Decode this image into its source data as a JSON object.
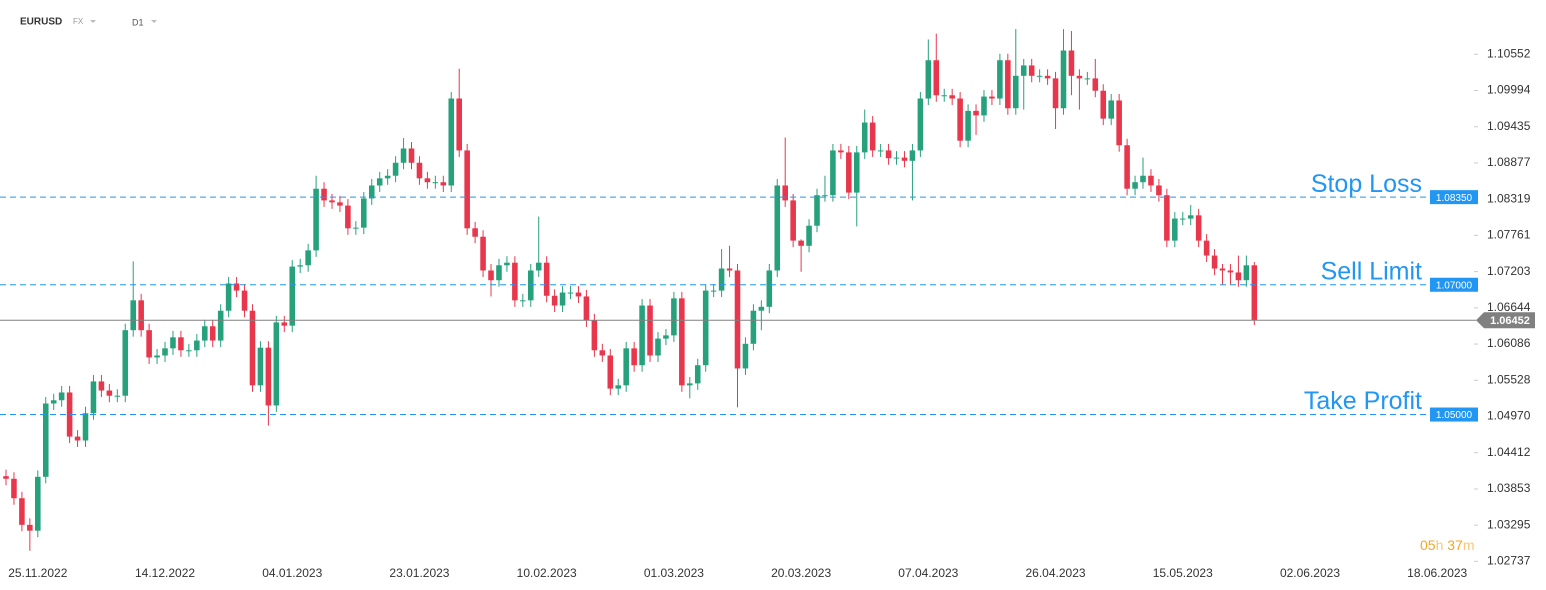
{
  "header": {
    "symbol": "EURUSD",
    "market": "FX",
    "interval": "D1"
  },
  "chart_data": {
    "type": "candlestick",
    "up_color": "#26a17b",
    "down_color": "#e8374c",
    "level_color": "#2196f3",
    "last_color": "#808080",
    "grid": false,
    "categories": [
      null,
      null,
      null,
      null,
      "25.11.2022",
      null,
      null,
      null,
      null,
      null,
      null,
      null,
      null,
      null,
      null,
      null,
      null,
      null,
      null,
      null,
      "14.12.2022",
      null,
      null,
      null,
      null,
      null,
      null,
      null,
      null,
      null,
      null,
      null,
      null,
      null,
      null,
      null,
      "04.01.2023",
      null,
      null,
      null,
      null,
      null,
      null,
      null,
      null,
      null,
      null,
      null,
      null,
      null,
      null,
      null,
      "23.01.2023",
      null,
      null,
      null,
      null,
      null,
      null,
      null,
      null,
      null,
      null,
      null,
      null,
      null,
      null,
      null,
      "10.02.2023",
      null,
      null,
      null,
      null,
      null,
      null,
      null,
      null,
      null,
      null,
      null,
      null,
      null,
      null,
      null,
      "01.03.2023",
      null,
      null,
      null,
      null,
      null,
      null,
      null,
      null,
      null,
      null,
      null,
      null,
      null,
      null,
      null,
      "20.03.2023",
      null,
      null,
      null,
      null,
      null,
      null,
      null,
      null,
      null,
      null,
      null,
      null,
      null,
      null,
      null,
      "07.04.2023",
      null,
      null,
      null,
      null,
      null,
      null,
      null,
      null,
      null,
      null,
      null,
      null,
      null,
      null,
      null,
      "26.04.2023",
      null,
      null,
      null,
      null,
      null,
      null,
      null,
      null,
      null,
      null,
      null,
      null,
      null,
      null,
      null,
      "15.05.2023",
      null,
      null,
      null,
      null,
      null,
      null,
      null,
      null,
      null,
      null,
      null,
      null,
      null,
      null,
      null,
      "02.06.2023",
      null,
      null,
      null,
      null,
      null,
      null,
      null,
      null,
      null,
      null,
      null,
      null,
      null,
      null,
      null,
      "18.06.2023",
      null,
      null,
      null,
      null
    ],
    "open": [
      1.0405,
      1.0401,
      1.0371,
      1.033,
      1.0321,
      1.0404,
      1.0517,
      1.0522,
      1.0534,
      1.0466,
      1.046,
      1.0502,
      1.0551,
      1.0537,
      1.0529,
      1.0529,
      1.063,
      1.0676,
      1.063,
      1.0588,
      1.0591,
      1.0602,
      1.0619,
      1.0599,
      1.0599,
      1.0614,
      1.0636,
      1.0614,
      1.066,
      1.0702,
      1.0691,
      1.066,
      1.0545,
      1.0603,
      1.0514,
      1.0642,
      1.0637,
      1.0728,
      1.073,
      1.0753,
      1.0848,
      1.083,
      1.0827,
      1.0822,
      1.0787,
      1.0788,
      1.0833,
      1.0853,
      1.0864,
      1.0868,
      1.0888,
      1.091,
      1.0888,
      1.0864,
      1.0858,
      1.0858,
      1.0853,
      1.0987,
      1.0907,
      1.0787,
      1.0774,
      1.0722,
      1.0707,
      1.073,
      1.0734,
      1.0676,
      1.0676,
      1.0722,
      1.0734,
      1.0683,
      1.0668,
      1.0688,
      1.0688,
      1.0682,
      1.0645,
      1.0599,
      1.0591,
      1.054,
      1.0545,
      1.0602,
      1.0576,
      1.0668,
      1.0591,
      1.0617,
      1.0622,
      1.0679,
      1.0545,
      1.0548,
      1.0576,
      1.0691,
      1.0691,
      1.0725,
      1.0722,
      1.0571,
      1.0609,
      1.066,
      1.0666,
      1.0722,
      1.0853,
      1.083,
      1.0768,
      1.076,
      1.0791,
      1.0838,
      1.0838,
      1.0907,
      1.0904,
      1.0842,
      1.0904,
      1.095,
      1.0907,
      1.0907,
      1.0895,
      1.0896,
      1.0891,
      1.0907,
      1.0987,
      1.1046,
      1.0992,
      1.0992,
      1.0987,
      1.0922,
      1.0968,
      1.0961,
      1.099,
      1.0987,
      1.1046,
      1.0972,
      1.1022,
      1.1038,
      1.1022,
      1.1022,
      1.1018,
      1.0972,
      1.1061,
      1.1022,
      1.1018,
      1.1018,
      1.0999,
      1.0956,
      1.0984,
      1.0915,
      1.0848,
      1.0858,
      1.0868,
      1.0853,
      1.0838,
      1.0768,
      1.0802,
      1.0802,
      1.0807,
      1.0768,
      1.0745,
      1.0725,
      1.0722,
      1.0719,
      1.0707,
      1.073,
      null,
      null,
      null,
      null,
      null,
      null,
      null,
      null,
      null,
      null,
      null,
      null,
      null,
      null,
      null,
      null,
      null,
      null,
      null,
      null,
      null,
      null,
      null,
      null,
      null,
      null,
      null
    ],
    "high": [
      1.0415,
      1.0411,
      1.0381,
      1.034,
      1.0414,
      1.0527,
      1.0532,
      1.0544,
      1.0544,
      1.0476,
      1.0512,
      1.0561,
      1.0561,
      1.0547,
      1.0539,
      1.064,
      1.0736,
      1.0686,
      1.064,
      1.0601,
      1.0612,
      1.0629,
      1.0629,
      1.0609,
      1.0624,
      1.0646,
      1.0646,
      1.067,
      1.0712,
      1.0712,
      1.0701,
      1.067,
      1.0613,
      1.0613,
      1.0652,
      1.0652,
      1.0738,
      1.074,
      1.0763,
      1.0868,
      1.0858,
      1.084,
      1.0837,
      1.0832,
      1.0798,
      1.0843,
      1.0863,
      1.0874,
      1.0878,
      1.0898,
      1.0926,
      1.092,
      1.0898,
      1.0874,
      1.0868,
      1.0868,
      1.0997,
      1.1033,
      1.0917,
      1.0797,
      1.0784,
      1.0732,
      1.074,
      1.0744,
      1.0744,
      1.0686,
      1.0732,
      1.0805,
      1.0744,
      1.0693,
      1.0698,
      1.0698,
      1.0698,
      1.0692,
      1.0655,
      1.0609,
      1.0601,
      1.0555,
      1.0612,
      1.0612,
      1.0678,
      1.0678,
      1.0627,
      1.0632,
      1.0689,
      1.0689,
      1.0558,
      1.0586,
      1.0701,
      1.0701,
      1.0755,
      1.076,
      1.0732,
      1.0619,
      1.067,
      1.0676,
      1.0732,
      1.0863,
      1.0927,
      1.084,
      1.077,
      1.0801,
      1.0848,
      1.0868,
      1.0917,
      1.0917,
      1.0914,
      1.0914,
      1.097,
      1.096,
      1.0917,
      1.0917,
      1.0906,
      1.0906,
      1.0917,
      1.0997,
      1.1078,
      1.1087,
      1.1002,
      1.1002,
      1.0997,
      1.0978,
      1.0978,
      1.1,
      1.1,
      1.1056,
      1.1056,
      1.1094,
      1.1048,
      1.1048,
      1.1032,
      1.1032,
      1.1028,
      1.1094,
      1.1091,
      1.1032,
      1.1028,
      1.1048,
      1.1009,
      1.0994,
      1.0994,
      1.0925,
      1.0868,
      1.0896,
      1.0878,
      1.0863,
      1.0848,
      1.0812,
      1.0812,
      1.0823,
      1.0817,
      1.0778,
      1.0755,
      1.0732,
      1.0732,
      1.0745,
      1.0745,
      1.0735,
      null,
      null,
      null,
      null,
      null,
      null,
      null,
      null,
      null,
      null,
      null,
      null,
      null,
      null,
      null,
      null,
      null,
      null,
      null,
      null,
      null,
      null,
      null,
      null,
      null,
      null,
      null
    ],
    "low": [
      1.0391,
      1.0361,
      1.032,
      1.029,
      1.0311,
      1.0394,
      1.0507,
      1.0512,
      1.0456,
      1.045,
      1.045,
      1.0492,
      1.0527,
      1.0519,
      1.0519,
      1.0519,
      1.062,
      1.062,
      1.0578,
      1.0578,
      1.0581,
      1.0592,
      1.0589,
      1.0589,
      1.0589,
      1.0604,
      1.0604,
      1.0604,
      1.065,
      1.0681,
      1.065,
      1.0535,
      1.0535,
      1.0483,
      1.0504,
      1.0627,
      1.0627,
      1.0718,
      1.072,
      1.0743,
      1.082,
      1.0817,
      1.0812,
      1.0777,
      1.0777,
      1.0778,
      1.0823,
      1.0843,
      1.0854,
      1.0858,
      1.0878,
      1.0878,
      1.0854,
      1.0848,
      1.0848,
      1.0843,
      1.0843,
      1.0897,
      1.0777,
      1.0764,
      1.0712,
      1.0682,
      1.0697,
      1.072,
      1.0666,
      1.0666,
      1.0666,
      1.0712,
      1.0673,
      1.0658,
      1.0658,
      1.0678,
      1.0672,
      1.0635,
      1.0589,
      1.0581,
      1.053,
      1.053,
      1.0535,
      1.0566,
      1.0566,
      1.0581,
      1.0581,
      1.0607,
      1.0612,
      1.0535,
      1.0525,
      1.0538,
      1.0566,
      1.0681,
      1.0681,
      1.0712,
      1.0511,
      1.0561,
      1.0599,
      1.063,
      1.0656,
      1.0712,
      1.082,
      1.0758,
      1.072,
      1.075,
      1.0781,
      1.0828,
      1.0828,
      1.0894,
      1.0832,
      1.079,
      1.0894,
      1.0897,
      1.0897,
      1.0885,
      1.0885,
      1.0881,
      1.083,
      1.0897,
      1.0977,
      1.0982,
      1.0982,
      1.0977,
      1.0912,
      1.0912,
      1.0931,
      1.0951,
      1.0977,
      1.0977,
      1.0962,
      1.0962,
      1.097,
      1.1012,
      1.1012,
      1.1008,
      1.094,
      1.0962,
      1.0992,
      1.097,
      1.1008,
      1.0989,
      1.0946,
      1.0946,
      1.0905,
      1.0838,
      1.0838,
      1.0848,
      1.0843,
      1.0828,
      1.0758,
      1.0758,
      1.0792,
      1.0792,
      1.0758,
      1.0735,
      1.0715,
      1.07,
      1.07,
      1.0697,
      1.0697,
      1.0638,
      null,
      null,
      null,
      null,
      null,
      null,
      null,
      null,
      null,
      null,
      null,
      null,
      null,
      null,
      null,
      null,
      null,
      null,
      null,
      null,
      null,
      null,
      null,
      null,
      null,
      null,
      null
    ],
    "close": [
      1.0401,
      1.0371,
      1.033,
      1.0321,
      1.0404,
      1.0517,
      1.0522,
      1.0534,
      1.0466,
      1.046,
      1.0502,
      1.0551,
      1.0537,
      1.0529,
      1.0529,
      1.063,
      1.0676,
      1.063,
      1.0588,
      1.0591,
      1.0602,
      1.0619,
      1.0599,
      1.0599,
      1.0614,
      1.0636,
      1.0614,
      1.066,
      1.0702,
      1.0691,
      1.066,
      1.0545,
      1.0603,
      1.0514,
      1.0642,
      1.0637,
      1.0728,
      1.073,
      1.0753,
      1.0848,
      1.083,
      1.0827,
      1.0822,
      1.0787,
      1.0788,
      1.0833,
      1.0853,
      1.0864,
      1.0868,
      1.0888,
      1.091,
      1.0888,
      1.0864,
      1.0858,
      1.0858,
      1.0853,
      1.0987,
      1.0907,
      1.0787,
      1.0774,
      1.0722,
      1.0707,
      1.073,
      1.0734,
      1.0676,
      1.0676,
      1.0722,
      1.0734,
      1.0683,
      1.0668,
      1.0688,
      1.0688,
      1.0682,
      1.0645,
      1.0599,
      1.0591,
      1.054,
      1.0545,
      1.0602,
      1.0576,
      1.0668,
      1.0591,
      1.0617,
      1.0622,
      1.0679,
      1.0545,
      1.0548,
      1.0576,
      1.0691,
      1.0691,
      1.0725,
      1.0722,
      1.0571,
      1.0609,
      1.066,
      1.0666,
      1.0722,
      1.0853,
      1.083,
      1.0768,
      1.076,
      1.0791,
      1.0838,
      1.0838,
      1.0907,
      1.0904,
      1.0842,
      1.0904,
      1.095,
      1.0907,
      1.0907,
      1.0895,
      1.0896,
      1.0891,
      1.0907,
      1.0987,
      1.1046,
      1.0992,
      1.0992,
      1.0987,
      1.0922,
      1.0968,
      1.0961,
      1.099,
      1.0987,
      1.1046,
      1.0972,
      1.1022,
      1.1038,
      1.1022,
      1.1022,
      1.1018,
      1.0972,
      1.1061,
      1.1022,
      1.1018,
      1.1018,
      1.0999,
      1.0956,
      1.0984,
      1.0915,
      1.0848,
      1.0858,
      1.0868,
      1.0853,
      1.0838,
      1.0768,
      1.0802,
      1.0802,
      1.0807,
      1.0768,
      1.0745,
      1.0725,
      1.0722,
      1.0719,
      1.0707,
      1.073,
      1.0645,
      null,
      null,
      null,
      null,
      null,
      null,
      null,
      null,
      null,
      null,
      null,
      null,
      null,
      null,
      null,
      null,
      null,
      null,
      null,
      null,
      null,
      null,
      null,
      null,
      null,
      null,
      null
    ],
    "ylim": [
      1.0245,
      1.1108
    ],
    "yticks": [
      1.10552,
      1.09994,
      1.09435,
      1.08877,
      1.08319,
      1.07761,
      1.07203,
      1.06644,
      1.06086,
      1.05528,
      {
        "value": 1.0497,
        "label": "1.04970"
      },
      1.04412,
      1.03853,
      1.03295,
      1.02737
    ],
    "levels": [
      {
        "name": "Stop Loss",
        "value": 1.0835,
        "label": "1.08350"
      },
      {
        "name": "Sell Limit",
        "value": 1.07,
        "label": "1.07000"
      },
      {
        "name": "Take Profit",
        "value": 1.05,
        "label": "1.05000"
      }
    ],
    "last_price": 1.06452,
    "timer": {
      "hours": "05",
      "hours_unit": "h",
      "minutes": "37",
      "minutes_unit": "m"
    }
  }
}
